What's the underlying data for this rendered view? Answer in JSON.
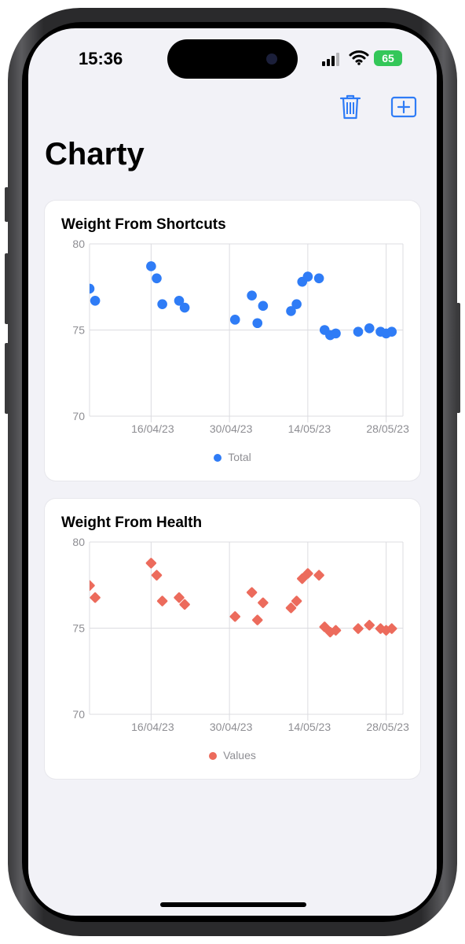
{
  "status_bar": {
    "time": "15:36",
    "battery": "65"
  },
  "toolbar": {
    "delete_icon": "trash-icon",
    "add_icon": "plus-square-icon",
    "accent_color": "#2f7cf6"
  },
  "page": {
    "title": "Charty"
  },
  "chart_data": [
    {
      "type": "scatter",
      "title": "Weight From Shortcuts",
      "marker": "circle",
      "color": "#2f7cf6",
      "x_range": [
        "2023-04-05",
        "2023-05-31"
      ],
      "x_ticks": [
        {
          "date": "2023-04-16",
          "label": "16/04/23"
        },
        {
          "date": "2023-04-30",
          "label": "30/04/23"
        },
        {
          "date": "2023-05-14",
          "label": "14/05/23"
        },
        {
          "date": "2023-05-28",
          "label": "28/05/23"
        }
      ],
      "y_ticks": [
        80,
        75,
        70
      ],
      "ylim": [
        70,
        80
      ],
      "grid": true,
      "legend": "bottom-center",
      "series": [
        {
          "name": "Total",
          "points": [
            {
              "x": "2023-04-05",
              "y": 77.4
            },
            {
              "x": "2023-04-06",
              "y": 76.7
            },
            {
              "x": "2023-04-16",
              "y": 78.7
            },
            {
              "x": "2023-04-17",
              "y": 78.0
            },
            {
              "x": "2023-04-18",
              "y": 76.5
            },
            {
              "x": "2023-04-21",
              "y": 76.7
            },
            {
              "x": "2023-04-22",
              "y": 76.3
            },
            {
              "x": "2023-05-01",
              "y": 75.6
            },
            {
              "x": "2023-05-04",
              "y": 77.0
            },
            {
              "x": "2023-05-05",
              "y": 75.4
            },
            {
              "x": "2023-05-06",
              "y": 76.4
            },
            {
              "x": "2023-05-11",
              "y": 76.1
            },
            {
              "x": "2023-05-12",
              "y": 76.5
            },
            {
              "x": "2023-05-13",
              "y": 77.8
            },
            {
              "x": "2023-05-14",
              "y": 78.1
            },
            {
              "x": "2023-05-16",
              "y": 78.0
            },
            {
              "x": "2023-05-17",
              "y": 75.0
            },
            {
              "x": "2023-05-18",
              "y": 74.7
            },
            {
              "x": "2023-05-19",
              "y": 74.8
            },
            {
              "x": "2023-05-23",
              "y": 74.9
            },
            {
              "x": "2023-05-25",
              "y": 75.1
            },
            {
              "x": "2023-05-27",
              "y": 74.9
            },
            {
              "x": "2023-05-28",
              "y": 74.8
            },
            {
              "x": "2023-05-29",
              "y": 74.9
            }
          ]
        }
      ]
    },
    {
      "type": "scatter",
      "title": "Weight From Health",
      "marker": "diamond",
      "color": "#ec6b5c",
      "x_range": [
        "2023-04-05",
        "2023-05-31"
      ],
      "x_ticks": [
        {
          "date": "2023-04-16",
          "label": "16/04/23"
        },
        {
          "date": "2023-04-30",
          "label": "30/04/23"
        },
        {
          "date": "2023-05-14",
          "label": "14/05/23"
        },
        {
          "date": "2023-05-28",
          "label": "28/05/23"
        }
      ],
      "y_ticks": [
        80,
        75,
        70
      ],
      "ylim": [
        70,
        80
      ],
      "grid": true,
      "legend": "bottom-center",
      "series": [
        {
          "name": "Values",
          "points": [
            {
              "x": "2023-04-05",
              "y": 77.4
            },
            {
              "x": "2023-04-06",
              "y": 76.7
            },
            {
              "x": "2023-04-16",
              "y": 78.7
            },
            {
              "x": "2023-04-17",
              "y": 78.0
            },
            {
              "x": "2023-04-18",
              "y": 76.5
            },
            {
              "x": "2023-04-21",
              "y": 76.7
            },
            {
              "x": "2023-04-22",
              "y": 76.3
            },
            {
              "x": "2023-05-01",
              "y": 75.6
            },
            {
              "x": "2023-05-04",
              "y": 77.0
            },
            {
              "x": "2023-05-05",
              "y": 75.4
            },
            {
              "x": "2023-05-06",
              "y": 76.4
            },
            {
              "x": "2023-05-11",
              "y": 76.1
            },
            {
              "x": "2023-05-12",
              "y": 76.5
            },
            {
              "x": "2023-05-13",
              "y": 77.8
            },
            {
              "x": "2023-05-14",
              "y": 78.1
            },
            {
              "x": "2023-05-16",
              "y": 78.0
            },
            {
              "x": "2023-05-17",
              "y": 75.0
            },
            {
              "x": "2023-05-18",
              "y": 74.7
            },
            {
              "x": "2023-05-19",
              "y": 74.8
            },
            {
              "x": "2023-05-23",
              "y": 74.9
            },
            {
              "x": "2023-05-25",
              "y": 75.1
            },
            {
              "x": "2023-05-27",
              "y": 74.9
            },
            {
              "x": "2023-05-28",
              "y": 74.8
            },
            {
              "x": "2023-05-29",
              "y": 74.9
            }
          ]
        }
      ]
    }
  ]
}
